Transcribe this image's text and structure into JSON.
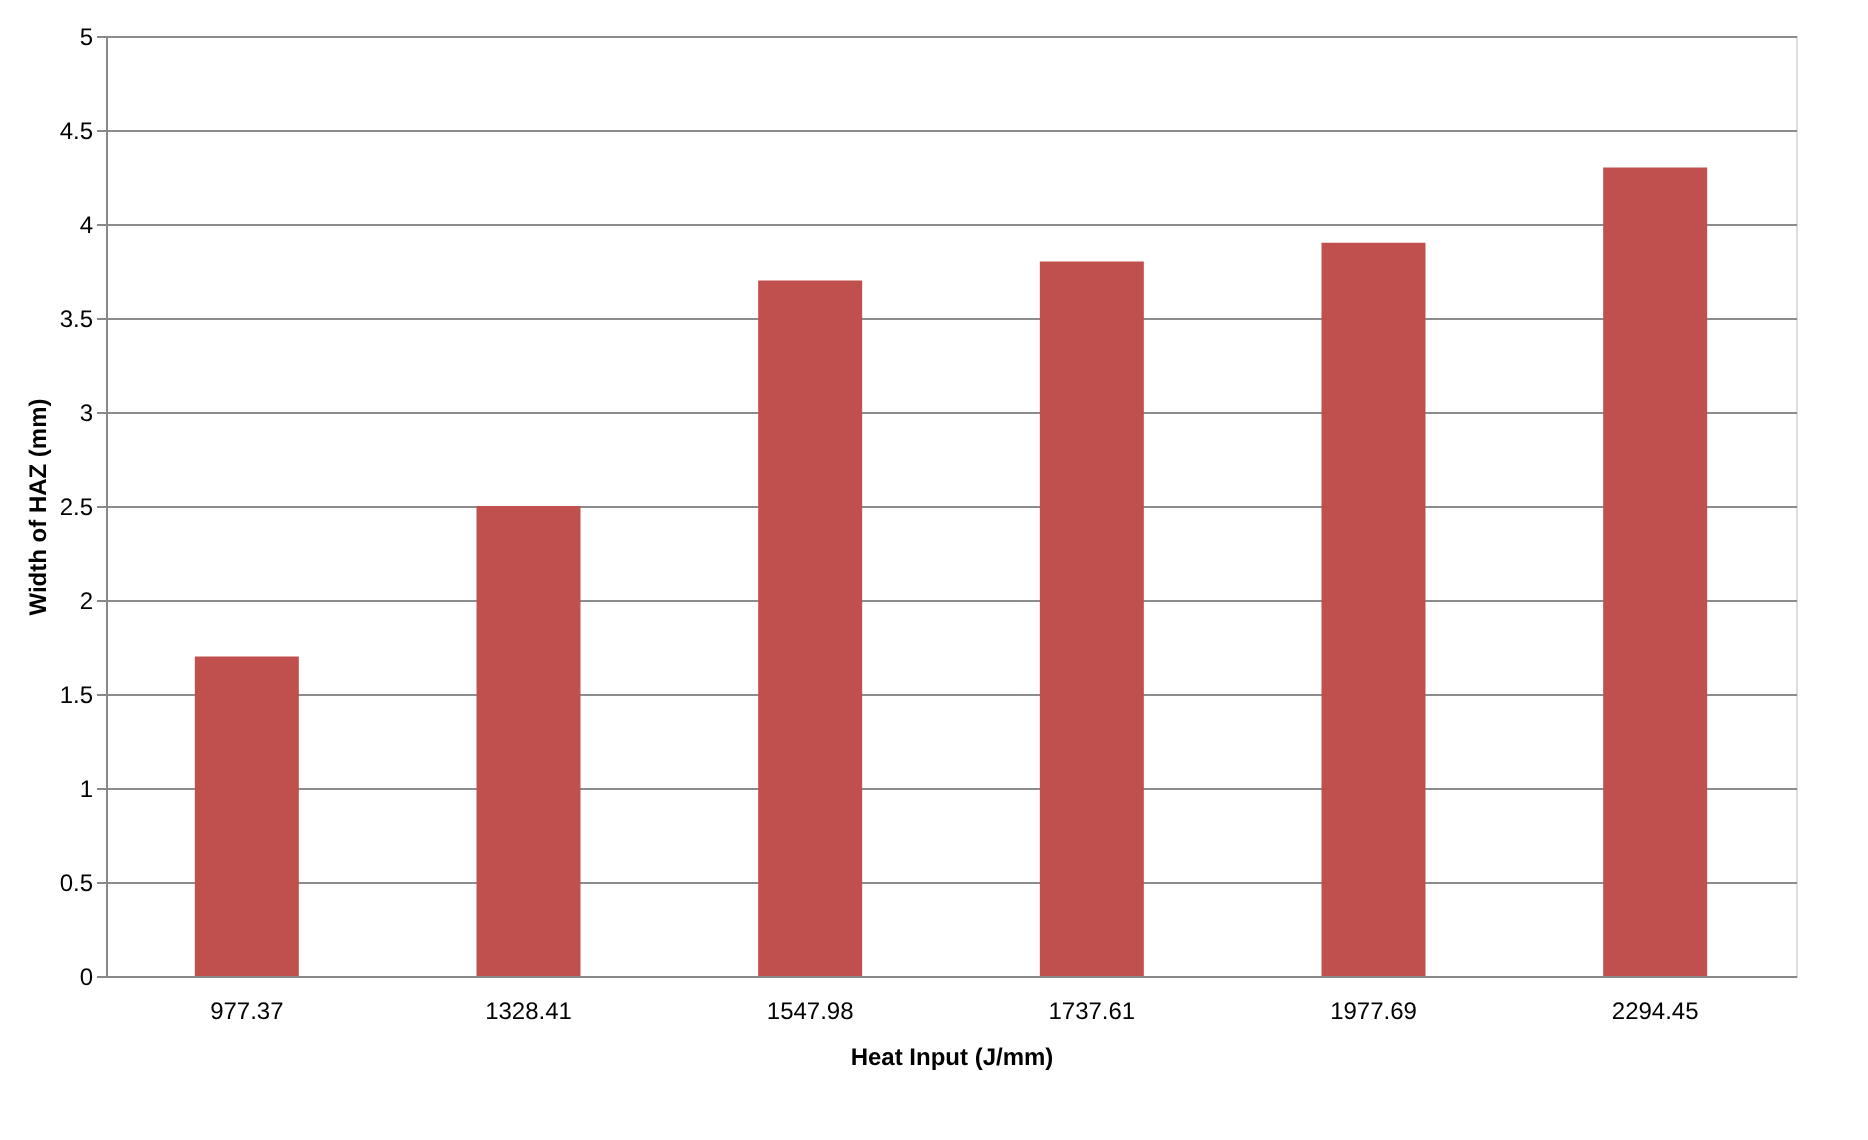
{
  "chart_data": {
    "type": "bar",
    "xlabel": "Heat Input (J/mm)",
    "ylabel": "Width of HAZ (mm)",
    "categories": [
      "977.37",
      "1328.41",
      "1547.98",
      "1737.61",
      "1977.69",
      "2294.45"
    ],
    "values": [
      1.7,
      2.5,
      3.7,
      3.8,
      3.9,
      4.3
    ],
    "color": "#c0504d",
    "ylim": [
      0,
      5
    ],
    "yticks": [
      0,
      0.5,
      1,
      1.5,
      2,
      2.5,
      3,
      3.5,
      4,
      4.5,
      5
    ],
    "grid": "y"
  }
}
